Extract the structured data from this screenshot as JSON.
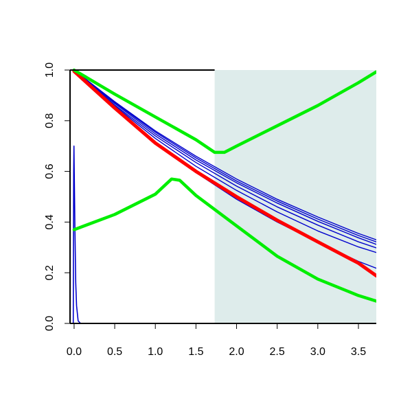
{
  "chart_data": {
    "type": "line",
    "title": "",
    "xlabel": "",
    "ylabel": "",
    "xlim": [
      -0.05,
      3.72
    ],
    "ylim": [
      0.0,
      1.0
    ],
    "xticks": [
      0.0,
      0.5,
      1.0,
      1.5,
      2.0,
      2.5,
      3.0,
      3.5
    ],
    "xtick_labels": [
      "0.0",
      "0.5",
      "1.0",
      "1.5",
      "2.0",
      "2.5",
      "3.0",
      "3.5"
    ],
    "yticks": [
      0.0,
      0.2,
      0.4,
      0.6,
      0.8,
      1.0
    ],
    "ytick_labels": [
      "0.0",
      "0.2",
      "0.4",
      "0.6",
      "0.8",
      "1.0"
    ],
    "grid": false,
    "legend": "none",
    "shaded_region": {
      "x_from": 1.73,
      "x_to": 3.72,
      "color": "#deeceb"
    },
    "colors": {
      "red": "#ff0000",
      "green": "#00ee00",
      "blue": "#0000cc",
      "axis": "#000000"
    },
    "series": [
      {
        "color": "#0000cc",
        "width": 1.4,
        "points": [
          [
            0,
            1.0
          ],
          [
            0.5,
            0.875
          ],
          [
            1.0,
            0.76
          ],
          [
            1.5,
            0.66
          ],
          [
            2.0,
            0.57
          ],
          [
            2.5,
            0.49
          ],
          [
            3.0,
            0.42
          ],
          [
            3.5,
            0.355
          ],
          [
            3.72,
            0.33
          ]
        ]
      },
      {
        "color": "#0000cc",
        "width": 1.4,
        "points": [
          [
            0,
            1.0
          ],
          [
            0.5,
            0.872
          ],
          [
            1.0,
            0.755
          ],
          [
            1.5,
            0.653
          ],
          [
            2.0,
            0.562
          ],
          [
            2.5,
            0.483
          ],
          [
            3.0,
            0.412
          ],
          [
            3.5,
            0.347
          ],
          [
            3.72,
            0.322
          ]
        ]
      },
      {
        "color": "#0000cc",
        "width": 1.4,
        "points": [
          [
            0,
            1.0
          ],
          [
            0.5,
            0.868
          ],
          [
            1.0,
            0.748
          ],
          [
            1.5,
            0.645
          ],
          [
            2.0,
            0.555
          ],
          [
            2.5,
            0.475
          ],
          [
            3.0,
            0.403
          ],
          [
            3.5,
            0.338
          ],
          [
            3.72,
            0.312
          ]
        ]
      },
      {
        "color": "#0000cc",
        "width": 1.4,
        "points": [
          [
            0,
            1.0
          ],
          [
            0.5,
            0.862
          ],
          [
            1.0,
            0.74
          ],
          [
            1.5,
            0.635
          ],
          [
            2.0,
            0.542
          ],
          [
            2.5,
            0.46
          ],
          [
            3.0,
            0.388
          ],
          [
            3.5,
            0.322
          ],
          [
            3.72,
            0.298
          ]
        ]
      },
      {
        "color": "#0000cc",
        "width": 1.4,
        "points": [
          [
            0,
            1.0
          ],
          [
            0.5,
            0.858
          ],
          [
            1.0,
            0.73
          ],
          [
            1.5,
            0.62
          ],
          [
            2.0,
            0.525
          ],
          [
            2.5,
            0.44
          ],
          [
            3.0,
            0.365
          ],
          [
            3.5,
            0.302
          ],
          [
            3.72,
            0.28
          ]
        ]
      },
      {
        "color": "#0000cc",
        "width": 1.4,
        "points": [
          [
            0,
            1.0
          ],
          [
            0.5,
            0.852
          ],
          [
            1.0,
            0.715
          ],
          [
            1.5,
            0.595
          ],
          [
            2.0,
            0.49
          ],
          [
            2.5,
            0.4
          ],
          [
            3.0,
            0.32
          ],
          [
            3.5,
            0.245
          ],
          [
            3.72,
            0.218
          ]
        ]
      },
      {
        "color": "#0000cc",
        "width": 1.6,
        "points": [
          [
            -0.01,
            0.0
          ],
          [
            -0.005,
            0.6
          ],
          [
            -0.002,
            0.7
          ],
          [
            0.0,
            0.65
          ],
          [
            0.01,
            0.38
          ],
          [
            0.02,
            0.16
          ],
          [
            0.03,
            0.07
          ],
          [
            0.05,
            0.01
          ],
          [
            0.08,
            0.0
          ],
          [
            3.72,
            0.0
          ]
        ]
      },
      {
        "color": "#ff0000",
        "width": 5,
        "points": [
          [
            0,
            0.995
          ],
          [
            0.5,
            0.85
          ],
          [
            1.0,
            0.712
          ],
          [
            1.5,
            0.6
          ],
          [
            2.0,
            0.5
          ],
          [
            2.5,
            0.407
          ],
          [
            3.0,
            0.322
          ],
          [
            3.5,
            0.238
          ],
          [
            3.72,
            0.188
          ]
        ]
      },
      {
        "color": "#00ee00",
        "width": 4.5,
        "points": [
          [
            0,
            1.0
          ],
          [
            0.5,
            0.905
          ],
          [
            1.0,
            0.815
          ],
          [
            1.5,
            0.725
          ],
          [
            1.73,
            0.675
          ],
          [
            1.85,
            0.675
          ],
          [
            2.0,
            0.7
          ],
          [
            2.5,
            0.78
          ],
          [
            3.0,
            0.86
          ],
          [
            3.5,
            0.95
          ],
          [
            3.72,
            0.993
          ]
        ]
      },
      {
        "color": "#00ee00",
        "width": 4.5,
        "points": [
          [
            0,
            0.37
          ],
          [
            0.5,
            0.43
          ],
          [
            1.0,
            0.51
          ],
          [
            1.2,
            0.57
          ],
          [
            1.3,
            0.565
          ],
          [
            1.5,
            0.505
          ],
          [
            2.0,
            0.385
          ],
          [
            2.5,
            0.265
          ],
          [
            3.0,
            0.175
          ],
          [
            3.5,
            0.11
          ],
          [
            3.72,
            0.088
          ]
        ]
      }
    ]
  }
}
